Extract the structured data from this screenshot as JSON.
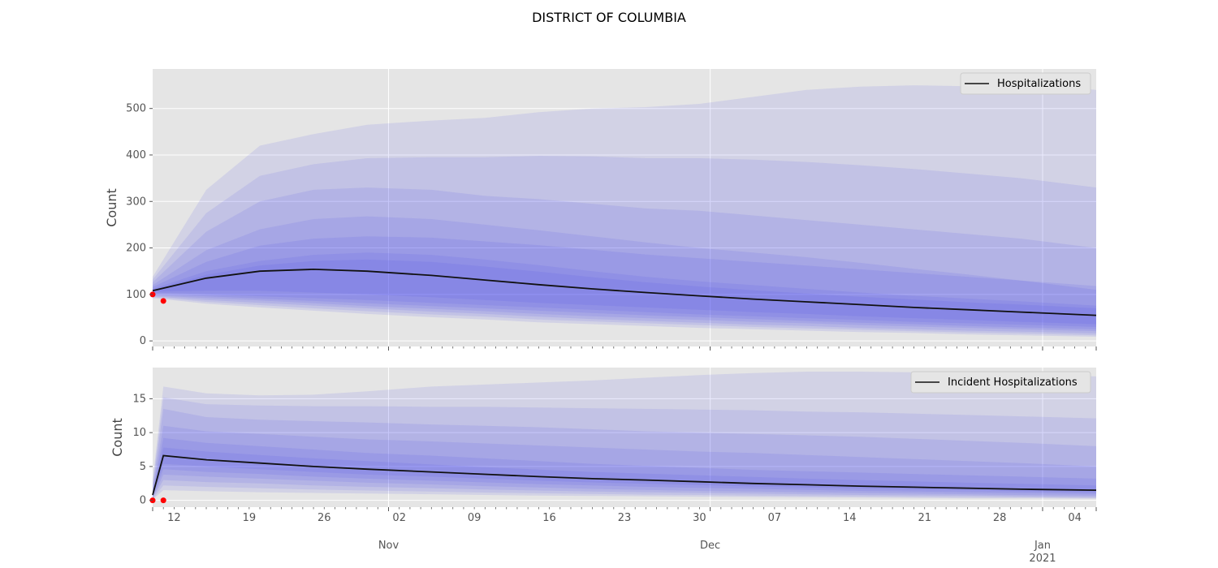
{
  "figure": {
    "title": "DISTRICT OF COLUMBIA"
  },
  "chart_data": [
    {
      "type": "area",
      "ylabel": "Count",
      "ylim": [
        -12,
        585
      ],
      "yticks": [
        0,
        100,
        200,
        300,
        400,
        500
      ],
      "legend": {
        "label": "Hospitalizations",
        "position": "top-right"
      },
      "grid": true,
      "median_color": "#111111",
      "band_color": "#4040ee",
      "x": [
        "2020-10-10",
        "2020-10-15",
        "2020-10-20",
        "2020-10-25",
        "2020-10-30",
        "2020-11-05",
        "2020-11-10",
        "2020-11-15",
        "2020-11-20",
        "2020-11-25",
        "2020-11-30",
        "2020-12-05",
        "2020-12-10",
        "2020-12-15",
        "2020-12-20",
        "2020-12-25",
        "2020-12-30",
        "2021-01-06"
      ],
      "median": [
        108,
        135,
        150,
        154,
        150,
        141,
        131,
        121,
        112,
        104,
        97,
        90,
        84,
        78,
        72,
        67,
        62,
        55
      ],
      "bands": [
        {
          "lower": [
            104,
            100,
            96,
            92,
            88,
            82,
            77,
            72,
            67,
            62,
            57,
            53,
            49,
            45,
            41,
            38,
            35,
            30
          ],
          "upper": [
            112,
            150,
            172,
            185,
            190,
            185,
            175,
            163,
            150,
            138,
            128,
            120,
            112,
            104,
            97,
            91,
            85,
            76
          ]
        },
        {
          "lower": [
            106,
            108,
            108,
            104,
            100,
            94,
            88,
            82,
            77,
            72,
            67,
            62,
            58,
            53,
            49,
            45,
            41,
            36
          ],
          "upper": [
            110,
            142,
            162,
            172,
            175,
            170,
            160,
            149,
            137,
            126,
            117,
            109,
            102,
            95,
            89,
            83,
            78,
            70
          ]
        },
        {
          "lower": [
            100,
            96,
            91,
            86,
            81,
            75,
            70,
            65,
            60,
            55,
            51,
            47,
            43,
            39,
            36,
            32,
            29,
            25
          ],
          "upper": [
            116,
            170,
            205,
            220,
            225,
            222,
            214,
            206,
            196,
            186,
            178,
            170,
            162,
            154,
            146,
            138,
            130,
            118
          ]
        },
        {
          "lower": [
            98,
            92,
            87,
            81,
            75,
            69,
            64,
            58,
            53,
            49,
            45,
            41,
            38,
            34,
            31,
            28,
            25,
            21
          ],
          "upper": [
            120,
            195,
            240,
            262,
            268,
            262,
            250,
            238,
            225,
            212,
            200,
            190,
            180,
            168,
            155,
            143,
            130,
            110
          ]
        },
        {
          "lower": [
            96,
            88,
            82,
            76,
            70,
            63,
            58,
            52,
            47,
            43,
            39,
            35,
            32,
            28,
            25,
            22,
            20,
            16
          ],
          "upper": [
            126,
            235,
            300,
            325,
            330,
            325,
            312,
            305,
            295,
            285,
            280,
            270,
            260,
            250,
            240,
            230,
            220,
            200
          ]
        },
        {
          "lower": [
            94,
            84,
            77,
            70,
            64,
            57,
            52,
            46,
            42,
            38,
            34,
            30,
            27,
            24,
            21,
            18,
            16,
            12
          ],
          "upper": [
            132,
            275,
            355,
            380,
            393,
            395,
            395,
            398,
            397,
            393,
            393,
            390,
            385,
            378,
            370,
            360,
            350,
            330
          ]
        },
        {
          "lower": [
            92,
            80,
            72,
            65,
            58,
            51,
            46,
            40,
            36,
            32,
            28,
            25,
            22,
            19,
            17,
            14,
            12,
            9
          ],
          "upper": [
            138,
            325,
            420,
            445,
            465,
            474,
            480,
            492,
            500,
            503,
            510,
            525,
            540,
            547,
            550,
            548,
            552,
            540
          ]
        }
      ]
    },
    {
      "type": "area",
      "ylabel": "Count",
      "ylim": [
        -1,
        19.6
      ],
      "yticks": [
        0,
        5,
        10,
        15
      ],
      "legend": {
        "label": "Incident Hospitalizations",
        "position": "top-right"
      },
      "grid": true,
      "median_color": "#111111",
      "band_color": "#4040ee",
      "x": [
        "2020-10-10",
        "2020-10-11",
        "2020-10-15",
        "2020-10-20",
        "2020-10-25",
        "2020-10-30",
        "2020-11-05",
        "2020-11-10",
        "2020-11-15",
        "2020-11-20",
        "2020-11-25",
        "2020-11-30",
        "2020-12-05",
        "2020-12-10",
        "2020-12-15",
        "2020-12-20",
        "2020-12-25",
        "2020-12-30",
        "2021-01-06"
      ],
      "median": [
        0.8,
        6.6,
        6.0,
        5.5,
        5.0,
        4.6,
        4.2,
        3.85,
        3.5,
        3.2,
        3.0,
        2.75,
        2.5,
        2.3,
        2.1,
        1.95,
        1.8,
        1.65,
        1.5
      ],
      "bands": [
        {
          "lower": [
            0.6,
            5.4,
            5.0,
            4.6,
            4.2,
            3.8,
            3.5,
            3.2,
            2.9,
            2.65,
            2.45,
            2.25,
            2.05,
            1.9,
            1.75,
            1.6,
            1.5,
            1.35,
            1.2
          ],
          "upper": [
            1.0,
            7.8,
            7.2,
            6.7,
            6.2,
            5.8,
            5.3,
            4.9,
            4.55,
            4.2,
            3.95,
            3.7,
            3.45,
            3.2,
            3.0,
            2.8,
            2.6,
            2.45,
            2.2
          ]
        },
        {
          "lower": [
            0.5,
            4.6,
            4.2,
            3.9,
            3.5,
            3.2,
            2.9,
            2.65,
            2.4,
            2.2,
            2.0,
            1.85,
            1.7,
            1.55,
            1.4,
            1.3,
            1.2,
            1.1,
            0.95
          ],
          "upper": [
            1.2,
            9.2,
            8.5,
            8.0,
            7.5,
            7.0,
            6.6,
            6.2,
            5.8,
            5.4,
            5.1,
            4.8,
            4.5,
            4.3,
            4.1,
            3.9,
            3.7,
            3.5,
            3.2
          ]
        },
        {
          "lower": [
            0.4,
            3.8,
            3.5,
            3.2,
            2.9,
            2.6,
            2.35,
            2.1,
            1.9,
            1.7,
            1.55,
            1.4,
            1.3,
            1.2,
            1.1,
            1.0,
            0.9,
            0.8,
            0.7
          ],
          "upper": [
            1.5,
            11.0,
            10.2,
            9.8,
            9.4,
            9.0,
            8.7,
            8.4,
            8.1,
            7.8,
            7.5,
            7.2,
            7.0,
            6.7,
            6.4,
            6.1,
            5.8,
            5.5,
            5.0
          ]
        },
        {
          "lower": [
            0.3,
            3.0,
            2.7,
            2.5,
            2.2,
            2.0,
            1.8,
            1.6,
            1.45,
            1.3,
            1.2,
            1.1,
            1.0,
            0.9,
            0.8,
            0.75,
            0.7,
            0.6,
            0.5
          ],
          "upper": [
            1.9,
            13.5,
            12.3,
            11.9,
            11.7,
            11.5,
            11.2,
            11.0,
            10.8,
            10.5,
            10.2,
            10.0,
            9.8,
            9.6,
            9.4,
            9.1,
            8.8,
            8.5,
            8.0
          ]
        },
        {
          "lower": [
            0.2,
            2.2,
            2.0,
            1.8,
            1.6,
            1.45,
            1.3,
            1.15,
            1.05,
            0.95,
            0.85,
            0.8,
            0.7,
            0.65,
            0.6,
            0.55,
            0.5,
            0.45,
            0.35
          ],
          "upper": [
            2.4,
            15.2,
            14.2,
            14.0,
            13.9,
            13.9,
            13.8,
            13.8,
            13.7,
            13.6,
            13.5,
            13.4,
            13.3,
            13.1,
            13.0,
            12.8,
            12.6,
            12.4,
            12.1
          ]
        },
        {
          "lower": [
            0.1,
            1.5,
            1.35,
            1.2,
            1.1,
            1.0,
            0.9,
            0.8,
            0.7,
            0.65,
            0.6,
            0.55,
            0.5,
            0.45,
            0.4,
            0.35,
            0.3,
            0.3,
            0.25
          ],
          "upper": [
            3.0,
            16.8,
            15.8,
            15.5,
            15.6,
            16.1,
            16.8,
            17.1,
            17.4,
            17.7,
            18.1,
            18.5,
            18.8,
            19.0,
            19.0,
            18.9,
            18.8,
            18.6,
            18.3
          ]
        }
      ]
    }
  ],
  "observations": [
    {
      "panel": 0,
      "points": [
        [
          "2020-10-10",
          100
        ],
        [
          "2020-10-11",
          86
        ]
      ],
      "color": "#ff0000"
    },
    {
      "panel": 1,
      "points": [
        [
          "2020-10-10",
          0
        ],
        [
          "2020-10-11",
          0
        ]
      ],
      "color": "#ff0000"
    }
  ],
  "x_axis": {
    "range": [
      "2020-10-10",
      "2021-01-06"
    ],
    "day_labels": [
      {
        "date": "2020-10-12",
        "label": "12"
      },
      {
        "date": "2020-10-19",
        "label": "19"
      },
      {
        "date": "2020-10-26",
        "label": "26"
      },
      {
        "date": "2020-11-02",
        "label": "02"
      },
      {
        "date": "2020-11-09",
        "label": "09"
      },
      {
        "date": "2020-11-16",
        "label": "16"
      },
      {
        "date": "2020-11-23",
        "label": "23"
      },
      {
        "date": "2020-11-30",
        "label": "30"
      },
      {
        "date": "2020-12-07",
        "label": "07"
      },
      {
        "date": "2020-12-14",
        "label": "14"
      },
      {
        "date": "2020-12-21",
        "label": "21"
      },
      {
        "date": "2020-12-28",
        "label": "28"
      },
      {
        "date": "2021-01-04",
        "label": "04"
      }
    ],
    "month_labels": [
      {
        "date": "2020-11-01",
        "label": "Nov"
      },
      {
        "date": "2020-12-01",
        "label": "Dec"
      },
      {
        "date": "2021-01-01",
        "label": "Jan",
        "sublabel": "2021"
      }
    ]
  }
}
